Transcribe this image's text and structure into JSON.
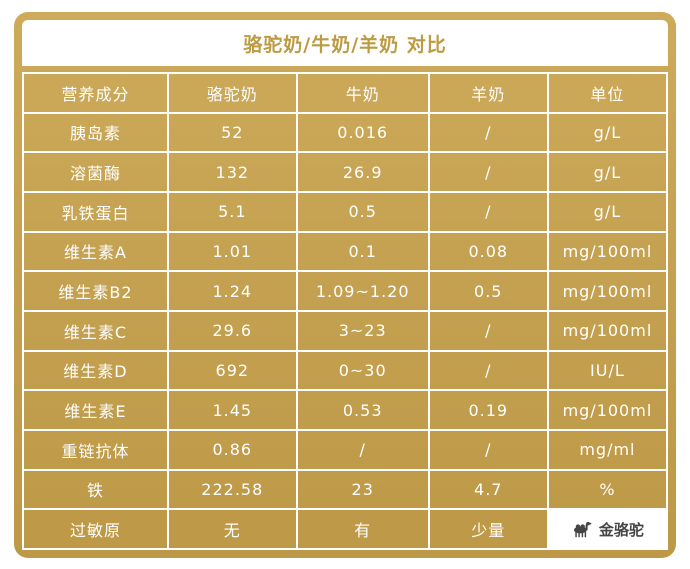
{
  "card": {
    "colors": {
      "gold_background": "#c3a04f",
      "title_text": "#bd9b41",
      "cell_text": "#ffffff",
      "grid_line": "#ffffff",
      "logo_text": "#454545",
      "logo_background": "#ffffff"
    }
  },
  "chart_data": {
    "type": "table",
    "title": "骆驼奶/牛奶/羊奶 对比",
    "columns": [
      "营养成分",
      "骆驼奶",
      "牛奶",
      "羊奶",
      "单位"
    ],
    "rows": [
      [
        "胰岛素",
        "52",
        "0.016",
        "/",
        "g/L"
      ],
      [
        "溶菌酶",
        "132",
        "26.9",
        "/",
        "g/L"
      ],
      [
        "乳铁蛋白",
        "5.1",
        "0.5",
        "/",
        "g/L"
      ],
      [
        "维生素A",
        "1.01",
        "0.1",
        "0.08",
        "mg/100ml"
      ],
      [
        "维生素B2",
        "1.24",
        "1.09~1.20",
        "0.5",
        "mg/100ml"
      ],
      [
        "维生素C",
        "29.6",
        "3~23",
        "/",
        "mg/100ml"
      ],
      [
        "维生素D",
        "692",
        "0~30",
        "/",
        "IU/L"
      ],
      [
        "维生素E",
        "1.45",
        "0.53",
        "0.19",
        "mg/100ml"
      ],
      [
        "重链抗体",
        "0.86",
        "/",
        "/",
        "mg/ml"
      ],
      [
        "铁",
        "222.58",
        "23",
        "4.7",
        "%"
      ],
      [
        "过敏原",
        "无",
        "有",
        "少量",
        ""
      ]
    ],
    "logo": {
      "icon": "camel-icon",
      "text": "金骆驼"
    },
    "layout": {
      "grid": true,
      "header_row": true,
      "all_cells_centered": true
    }
  }
}
